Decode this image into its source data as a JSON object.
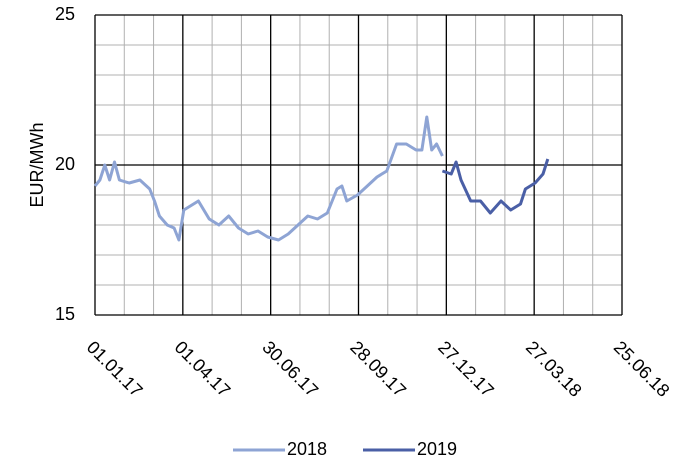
{
  "chart_data": {
    "type": "line",
    "ylabel": "EUR/MWh",
    "ylim": [
      15,
      25
    ],
    "yticks": [
      15,
      20,
      25
    ],
    "xlim": [
      "2017-01-01",
      "2018-06-25"
    ],
    "xticks": [
      {
        "value": "2017-01-01",
        "label": "01.01.17"
      },
      {
        "value": "2017-04-01",
        "label": "01.04.17"
      },
      {
        "value": "2017-06-30",
        "label": "30.06.17"
      },
      {
        "value": "2017-09-28",
        "label": "28.09.17"
      },
      {
        "value": "2017-12-27",
        "label": "27.12.17"
      },
      {
        "value": "2018-03-27",
        "label": "27.03.18"
      },
      {
        "value": "2018-06-25",
        "label": "25.06.18"
      }
    ],
    "grid": true,
    "legend": "bottom",
    "series": [
      {
        "name": "2018",
        "color": "#8ea4d4",
        "x": [
          "2017-01-01",
          "2017-01-06",
          "2017-01-11",
          "2017-01-16",
          "2017-01-21",
          "2017-01-26",
          "2017-02-05",
          "2017-02-16",
          "2017-02-26",
          "2017-03-03",
          "2017-03-08",
          "2017-03-16",
          "2017-03-23",
          "2017-03-28",
          "2017-04-02",
          "2017-04-07",
          "2017-04-17",
          "2017-04-28",
          "2017-05-08",
          "2017-05-18",
          "2017-05-28",
          "2017-06-07",
          "2017-06-17",
          "2017-06-27",
          "2017-07-08",
          "2017-07-18",
          "2017-07-28",
          "2017-08-07",
          "2017-08-17",
          "2017-08-27",
          "2017-09-06",
          "2017-09-11",
          "2017-09-16",
          "2017-09-27",
          "2017-10-07",
          "2017-10-17",
          "2017-10-27",
          "2017-11-06",
          "2017-11-16",
          "2017-11-26",
          "2017-12-02",
          "2017-12-07",
          "2017-12-12",
          "2017-12-17",
          "2017-12-23"
        ],
        "values": [
          19.3,
          19.5,
          20.0,
          19.5,
          20.1,
          19.5,
          19.4,
          19.5,
          19.2,
          18.8,
          18.3,
          18.0,
          17.9,
          17.5,
          18.5,
          18.6,
          18.8,
          18.2,
          18.0,
          18.3,
          17.9,
          17.7,
          17.8,
          17.6,
          17.5,
          17.7,
          18.0,
          18.3,
          18.2,
          18.4,
          19.2,
          19.3,
          18.8,
          19.0,
          19.3,
          19.6,
          19.8,
          20.7,
          20.7,
          20.5,
          20.5,
          21.6,
          20.5,
          20.7,
          20.3
        ]
      },
      {
        "name": "2019",
        "color": "#4a5fa6",
        "x": [
          "2017-12-23",
          "2018-01-01",
          "2018-01-06",
          "2018-01-11",
          "2018-01-21",
          "2018-01-31",
          "2018-02-10",
          "2018-02-21",
          "2018-03-03",
          "2018-03-13",
          "2018-03-18",
          "2018-03-28",
          "2018-04-05",
          "2018-04-10"
        ],
        "values": [
          19.8,
          19.7,
          20.1,
          19.5,
          18.8,
          18.8,
          18.4,
          18.8,
          18.5,
          18.7,
          19.2,
          19.4,
          19.7,
          20.2
        ]
      }
    ]
  }
}
